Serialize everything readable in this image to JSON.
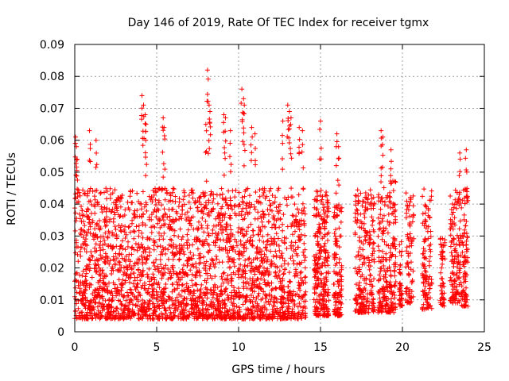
{
  "chart_data": {
    "type": "scatter",
    "title": "Day 146 of 2019, Rate Of TEC Index for receiver tgmx",
    "xlabel": "GPS time / hours",
    "ylabel": "ROTI / TECUs",
    "xlim": [
      0,
      25
    ],
    "ylim": [
      0,
      0.09
    ],
    "x_ticks": [
      0,
      5,
      10,
      15,
      20,
      25
    ],
    "x_tick_labels": [
      "0",
      "5",
      "10",
      "15",
      "20",
      "25"
    ],
    "y_ticks": [
      0,
      0.01,
      0.02,
      0.03,
      0.04,
      0.05,
      0.06,
      0.07,
      0.08,
      0.09
    ],
    "y_tick_labels": [
      "0",
      "0.01",
      "0.02",
      "0.03",
      "0.04",
      "0.05",
      "0.06",
      "0.07",
      "0.08",
      "0.09"
    ],
    "grid": true,
    "marker": "+",
    "series": [
      {
        "name": "ROTI",
        "color": "#ff0000",
        "clusters": [
          {
            "t_start": 0.0,
            "t_end": 14.1,
            "lo": 0.004,
            "hi": 0.045,
            "n": 2600
          },
          {
            "t_start": 14.6,
            "t_end": 15.5,
            "lo": 0.005,
            "hi": 0.045,
            "n": 260
          },
          {
            "t_start": 15.8,
            "t_end": 16.3,
            "lo": 0.005,
            "hi": 0.04,
            "n": 130
          },
          {
            "t_start": 17.1,
            "t_end": 18.3,
            "lo": 0.006,
            "hi": 0.045,
            "n": 240
          },
          {
            "t_start": 18.5,
            "t_end": 19.6,
            "lo": 0.006,
            "hi": 0.048,
            "n": 230
          },
          {
            "t_start": 19.8,
            "t_end": 20.0,
            "lo": 0.008,
            "hi": 0.03,
            "n": 40
          },
          {
            "t_start": 20.2,
            "t_end": 20.7,
            "lo": 0.009,
            "hi": 0.045,
            "n": 80
          },
          {
            "t_start": 21.2,
            "t_end": 21.8,
            "lo": 0.007,
            "hi": 0.045,
            "n": 110
          },
          {
            "t_start": 22.3,
            "t_end": 22.6,
            "lo": 0.008,
            "hi": 0.03,
            "n": 50
          },
          {
            "t_start": 22.9,
            "t_end": 23.6,
            "lo": 0.009,
            "hi": 0.045,
            "n": 130
          },
          {
            "t_start": 23.6,
            "t_end": 24.0,
            "lo": 0.008,
            "hi": 0.045,
            "n": 90
          }
        ],
        "peaks": [
          {
            "x": 0.05,
            "y": 0.061
          },
          {
            "x": 0.1,
            "y": 0.058
          },
          {
            "x": 0.15,
            "y": 0.054
          },
          {
            "x": 0.9,
            "y": 0.063
          },
          {
            "x": 1.3,
            "y": 0.06
          },
          {
            "x": 4.1,
            "y": 0.074
          },
          {
            "x": 4.2,
            "y": 0.071
          },
          {
            "x": 4.3,
            "y": 0.068
          },
          {
            "x": 4.35,
            "y": 0.065
          },
          {
            "x": 5.4,
            "y": 0.067
          },
          {
            "x": 5.45,
            "y": 0.064
          },
          {
            "x": 8.0,
            "y": 0.065
          },
          {
            "x": 8.1,
            "y": 0.082
          },
          {
            "x": 8.2,
            "y": 0.071
          },
          {
            "x": 8.25,
            "y": 0.069
          },
          {
            "x": 9.1,
            "y": 0.068
          },
          {
            "x": 9.2,
            "y": 0.067
          },
          {
            "x": 9.5,
            "y": 0.063
          },
          {
            "x": 10.2,
            "y": 0.076
          },
          {
            "x": 10.3,
            "y": 0.073
          },
          {
            "x": 10.35,
            "y": 0.071
          },
          {
            "x": 10.8,
            "y": 0.064
          },
          {
            "x": 11.0,
            "y": 0.062
          },
          {
            "x": 12.7,
            "y": 0.066
          },
          {
            "x": 13.0,
            "y": 0.071
          },
          {
            "x": 13.1,
            "y": 0.069
          },
          {
            "x": 13.2,
            "y": 0.067
          },
          {
            "x": 13.7,
            "y": 0.064
          },
          {
            "x": 13.9,
            "y": 0.063
          },
          {
            "x": 15.0,
            "y": 0.066
          },
          {
            "x": 16.0,
            "y": 0.062
          },
          {
            "x": 16.1,
            "y": 0.058
          },
          {
            "x": 18.7,
            "y": 0.063
          },
          {
            "x": 18.8,
            "y": 0.061
          },
          {
            "x": 19.3,
            "y": 0.057
          },
          {
            "x": 23.5,
            "y": 0.056
          },
          {
            "x": 23.9,
            "y": 0.057
          }
        ]
      }
    ]
  }
}
